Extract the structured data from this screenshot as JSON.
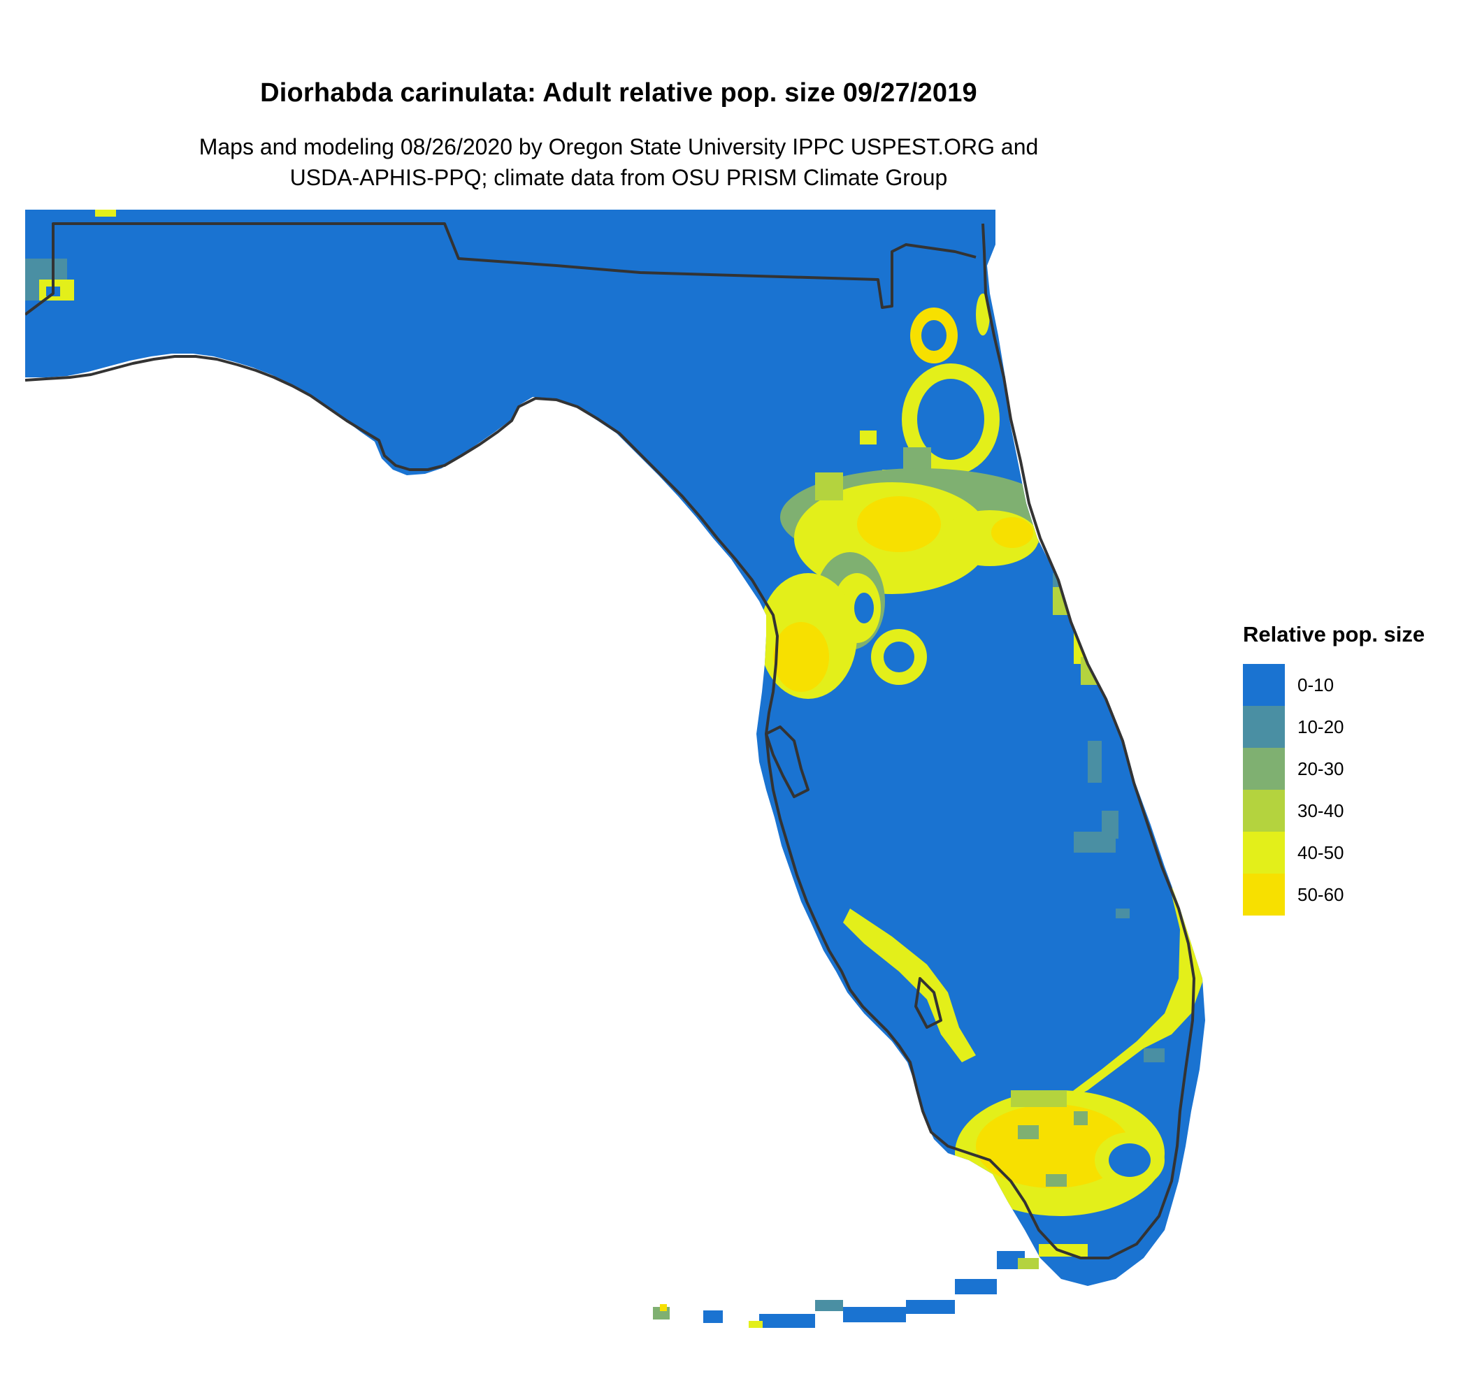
{
  "header": {
    "title": "Diorhabda carinulata: Adult relative pop. size 09/27/2019",
    "subtitle_line1": "Maps and modeling 08/26/2020 by Oregon State University IPPC USPEST.ORG and",
    "subtitle_line2": "USDA-APHIS-PPQ; climate data from OSU PRISM Climate Group"
  },
  "legend": {
    "title": "Relative pop. size",
    "items": [
      {
        "label": "0-10",
        "color": "#1a73d1"
      },
      {
        "label": "10-20",
        "color": "#4a8fa3"
      },
      {
        "label": "20-30",
        "color": "#7fb071"
      },
      {
        "label": "30-40",
        "color": "#b4d33e"
      },
      {
        "label": "40-50",
        "color": "#e3ef1a"
      },
      {
        "label": "50-60",
        "color": "#f7e000"
      }
    ]
  },
  "map": {
    "region": "Florida",
    "base_color": "#1a73d1",
    "outline_color": "#333333"
  }
}
